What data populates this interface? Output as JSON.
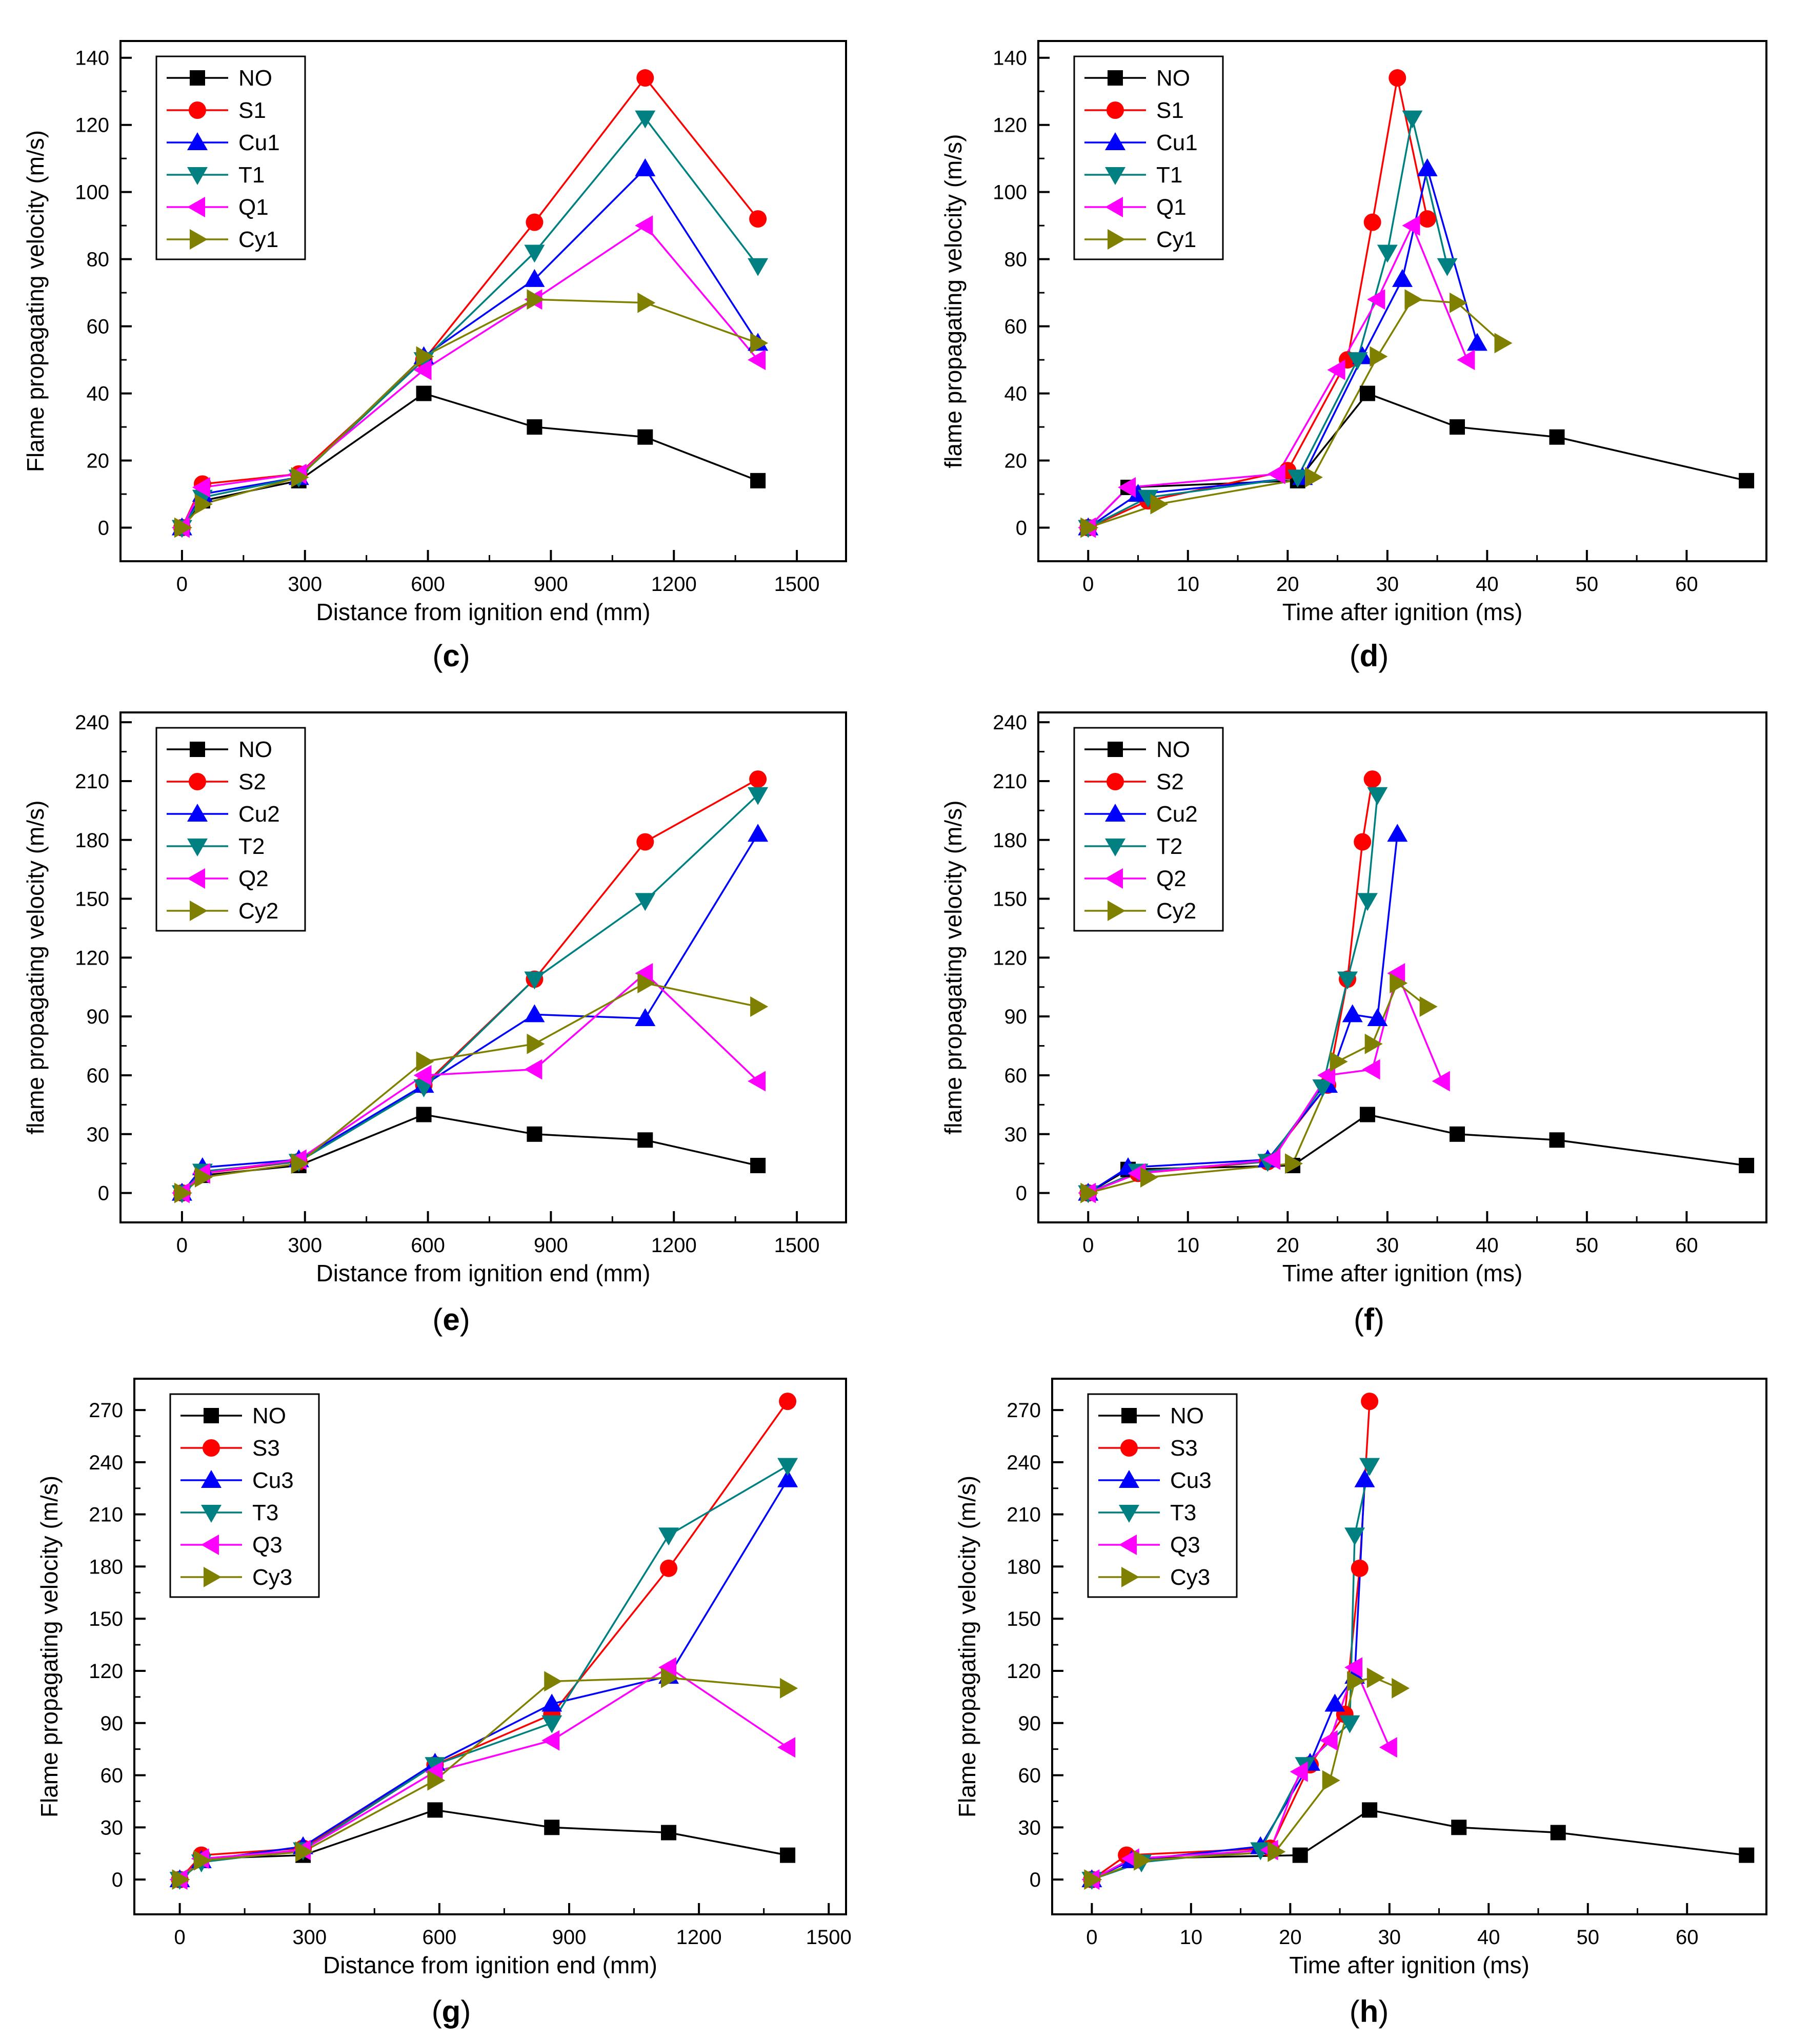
{
  "chart_data": [
    {
      "panel": "c",
      "type": "line",
      "xlabel": "Distance from ignition end (mm)",
      "ylabel": "Flame propagating velocity (m/s)",
      "xlim": [
        -150,
        1620
      ],
      "ylim": [
        -10,
        145
      ],
      "xticks": [
        0,
        300,
        600,
        900,
        1200,
        1500
      ],
      "yticks": [
        0,
        20,
        40,
        60,
        80,
        100,
        120,
        140
      ],
      "grid": false,
      "legend": "top-left",
      "series": [
        {
          "name": "NO",
          "color": "#000000",
          "marker": "square",
          "x": [
            0,
            50,
            285,
            590,
            860,
            1130,
            1405
          ],
          "y": [
            0,
            8,
            14,
            40,
            30,
            27,
            14
          ]
        },
        {
          "name": "S1",
          "color": "#ff0000",
          "marker": "circle",
          "x": [
            0,
            50,
            285,
            590,
            860,
            1130,
            1405
          ],
          "y": [
            0,
            13,
            16,
            50,
            91,
            134,
            92
          ]
        },
        {
          "name": "Cu1",
          "color": "#0000ff",
          "marker": "triangle-up",
          "x": [
            0,
            50,
            285,
            590,
            860,
            1130,
            1405
          ],
          "y": [
            0,
            10,
            15,
            51,
            74,
            107,
            55
          ]
        },
        {
          "name": "T1",
          "color": "#008080",
          "marker": "triangle-down",
          "x": [
            0,
            50,
            285,
            590,
            860,
            1130,
            1405
          ],
          "y": [
            0,
            9,
            15,
            50,
            82,
            122,
            78
          ]
        },
        {
          "name": "Q1",
          "color": "#ff00ff",
          "marker": "triangle-left",
          "x": [
            0,
            50,
            285,
            590,
            860,
            1130,
            1405
          ],
          "y": [
            0,
            12,
            16,
            47,
            68,
            90,
            50
          ]
        },
        {
          "name": "Cy1",
          "color": "#808000",
          "marker": "triangle-right",
          "x": [
            0,
            50,
            285,
            590,
            860,
            1130,
            1405
          ],
          "y": [
            0,
            7,
            15,
            51,
            68,
            67,
            55
          ]
        }
      ]
    },
    {
      "panel": "d",
      "type": "line",
      "xlabel": "Time after ignition (ms)",
      "ylabel": "flame propagating velocity (m/s)",
      "xlim": [
        -5,
        68
      ],
      "ylim": [
        -10,
        145
      ],
      "xticks": [
        0,
        10,
        20,
        30,
        40,
        50,
        60
      ],
      "yticks": [
        0,
        20,
        40,
        60,
        80,
        100,
        120,
        140
      ],
      "grid": false,
      "legend": "top-left",
      "series": [
        {
          "name": "NO",
          "color": "#000000",
          "marker": "square",
          "x": [
            0,
            4,
            21,
            28,
            37,
            47,
            66
          ],
          "y": [
            0,
            12,
            14,
            40,
            30,
            27,
            14
          ]
        },
        {
          "name": "S1",
          "color": "#ff0000",
          "marker": "circle",
          "x": [
            0,
            6,
            20,
            26,
            28.5,
            31,
            34
          ],
          "y": [
            0,
            8,
            17,
            50,
            91,
            134,
            92
          ]
        },
        {
          "name": "Cu1",
          "color": "#0000ff",
          "marker": "triangle-up",
          "x": [
            0,
            5,
            21.5,
            27.5,
            31.5,
            34,
            39
          ],
          "y": [
            0,
            10,
            15,
            51,
            74,
            107,
            55
          ]
        },
        {
          "name": "T1",
          "color": "#008080",
          "marker": "triangle-down",
          "x": [
            0,
            6,
            21,
            27,
            30,
            32.5,
            36
          ],
          "y": [
            0,
            9,
            15,
            50,
            82,
            122,
            78
          ]
        },
        {
          "name": "Q1",
          "color": "#ff00ff",
          "marker": "triangle-left",
          "x": [
            0,
            4,
            19,
            25,
            29,
            32.5,
            38
          ],
          "y": [
            0,
            12,
            16,
            47,
            68,
            90,
            50
          ]
        },
        {
          "name": "Cy1",
          "color": "#808000",
          "marker": "triangle-right",
          "x": [
            0,
            7,
            22.5,
            29,
            32.5,
            37,
            41.5
          ],
          "y": [
            0,
            7,
            15,
            51,
            68,
            67,
            55
          ]
        }
      ]
    },
    {
      "panel": "e",
      "type": "line",
      "xlabel": "Distance from ignition end (mm)",
      "ylabel": "flame propagating velocity (m/s)",
      "xlim": [
        -150,
        1620
      ],
      "ylim": [
        -15,
        245
      ],
      "xticks": [
        0,
        300,
        600,
        900,
        1200,
        1500
      ],
      "yticks": [
        0,
        30,
        60,
        90,
        120,
        150,
        180,
        210,
        240
      ],
      "grid": false,
      "legend": "top-left",
      "series": [
        {
          "name": "NO",
          "color": "#000000",
          "marker": "square",
          "x": [
            0,
            50,
            285,
            590,
            860,
            1130,
            1405
          ],
          "y": [
            0,
            9,
            14,
            40,
            30,
            27,
            14
          ]
        },
        {
          "name": "S2",
          "color": "#ff0000",
          "marker": "circle",
          "x": [
            0,
            50,
            285,
            590,
            860,
            1130,
            1405
          ],
          "y": [
            0,
            10,
            16,
            55,
            109,
            179,
            211
          ]
        },
        {
          "name": "Cu2",
          "color": "#0000ff",
          "marker": "triangle-up",
          "x": [
            0,
            50,
            285,
            590,
            860,
            1130,
            1405
          ],
          "y": [
            0,
            13,
            17,
            55,
            91,
            89,
            183
          ]
        },
        {
          "name": "T2",
          "color": "#008080",
          "marker": "triangle-down",
          "x": [
            0,
            50,
            285,
            590,
            860,
            1130,
            1405
          ],
          "y": [
            0,
            11,
            16,
            54,
            109,
            149,
            203
          ]
        },
        {
          "name": "Q2",
          "color": "#ff00ff",
          "marker": "triangle-left",
          "x": [
            0,
            50,
            285,
            590,
            860,
            1130,
            1405
          ],
          "y": [
            0,
            10,
            17,
            60,
            63,
            112,
            57
          ]
        },
        {
          "name": "Cy2",
          "color": "#808000",
          "marker": "triangle-right",
          "x": [
            0,
            50,
            285,
            590,
            860,
            1130,
            1405
          ],
          "y": [
            0,
            8,
            15,
            67,
            76,
            107,
            95
          ]
        }
      ]
    },
    {
      "panel": "f",
      "type": "line",
      "xlabel": "Time after ignition (ms)",
      "ylabel": "flame propagating velocity (m/s)",
      "xlim": [
        -5,
        68
      ],
      "ylim": [
        -15,
        245
      ],
      "xticks": [
        0,
        10,
        20,
        30,
        40,
        50,
        60
      ],
      "yticks": [
        0,
        30,
        60,
        90,
        120,
        150,
        180,
        210,
        240
      ],
      "grid": false,
      "legend": "top-left",
      "series": [
        {
          "name": "NO",
          "color": "#000000",
          "marker": "square",
          "x": [
            0,
            4,
            20.5,
            28,
            37,
            47,
            66
          ],
          "y": [
            0,
            12,
            14,
            40,
            30,
            27,
            14
          ]
        },
        {
          "name": "S2",
          "color": "#ff0000",
          "marker": "circle",
          "x": [
            0,
            5,
            18,
            24,
            26,
            27.5,
            28.5
          ],
          "y": [
            0,
            10,
            16,
            55,
            109,
            179,
            211
          ]
        },
        {
          "name": "Cu2",
          "color": "#0000ff",
          "marker": "triangle-up",
          "x": [
            0,
            4,
            18,
            24,
            26.5,
            29,
            31
          ],
          "y": [
            0,
            13,
            17,
            55,
            91,
            89,
            183
          ]
        },
        {
          "name": "T2",
          "color": "#008080",
          "marker": "triangle-down",
          "x": [
            0,
            5,
            18,
            23.5,
            26,
            28,
            29
          ],
          "y": [
            0,
            11,
            16,
            54,
            109,
            149,
            203
          ]
        },
        {
          "name": "Q2",
          "color": "#ff00ff",
          "marker": "triangle-left",
          "x": [
            0,
            5,
            18.5,
            24,
            28.5,
            31,
            35.5
          ],
          "y": [
            0,
            10,
            17,
            60,
            63,
            112,
            57
          ]
        },
        {
          "name": "Cy2",
          "color": "#808000",
          "marker": "triangle-right",
          "x": [
            0,
            6,
            20.5,
            25,
            28.5,
            31,
            34
          ],
          "y": [
            0,
            8,
            15,
            67,
            76,
            107,
            95
          ]
        }
      ]
    },
    {
      "panel": "g",
      "type": "line",
      "xlabel": "Distance from ignition end (mm)",
      "ylabel": "Flame propagating velocity (m/s)",
      "xlim": [
        -105,
        1540
      ],
      "ylim": [
        -20,
        288
      ],
      "xticks": [
        0,
        300,
        600,
        900,
        1200,
        1500
      ],
      "yticks": [
        0,
        30,
        60,
        90,
        120,
        150,
        180,
        210,
        240,
        270
      ],
      "grid": false,
      "legend": "top-left",
      "series": [
        {
          "name": "NO",
          "color": "#000000",
          "marker": "square",
          "x": [
            0,
            50,
            285,
            590,
            860,
            1130,
            1405
          ],
          "y": [
            0,
            12,
            14,
            40,
            30,
            27,
            14
          ]
        },
        {
          "name": "S3",
          "color": "#ff0000",
          "marker": "circle",
          "x": [
            0,
            50,
            285,
            590,
            860,
            1130,
            1405
          ],
          "y": [
            0,
            14,
            18,
            66,
            95,
            179,
            275
          ]
        },
        {
          "name": "Cu3",
          "color": "#0000ff",
          "marker": "triangle-up",
          "x": [
            0,
            50,
            285,
            590,
            860,
            1130,
            1405
          ],
          "y": [
            0,
            11,
            19,
            67,
            101,
            117,
            230
          ]
        },
        {
          "name": "T3",
          "color": "#008080",
          "marker": "triangle-down",
          "x": [
            0,
            50,
            285,
            590,
            860,
            1130,
            1405
          ],
          "y": [
            0,
            10,
            17,
            66,
            90,
            198,
            238
          ]
        },
        {
          "name": "Q3",
          "color": "#ff00ff",
          "marker": "triangle-left",
          "x": [
            0,
            50,
            285,
            590,
            860,
            1130,
            1405
          ],
          "y": [
            0,
            12,
            17,
            62,
            80,
            122,
            76
          ]
        },
        {
          "name": "Cy3",
          "color": "#808000",
          "marker": "triangle-right",
          "x": [
            0,
            50,
            285,
            590,
            860,
            1130,
            1405
          ],
          "y": [
            0,
            11,
            16,
            57,
            114,
            116,
            110
          ]
        }
      ]
    },
    {
      "panel": "h",
      "type": "line",
      "xlabel": "Time after ignition (ms)",
      "ylabel": "Flame propagating velocity (m/s)",
      "xlim": [
        -4,
        68
      ],
      "ylim": [
        -20,
        288
      ],
      "xticks": [
        0,
        10,
        20,
        30,
        40,
        50,
        60
      ],
      "yticks": [
        0,
        30,
        60,
        90,
        120,
        150,
        180,
        210,
        240,
        270
      ],
      "grid": false,
      "legend": "top-left",
      "series": [
        {
          "name": "NO",
          "color": "#000000",
          "marker": "square",
          "x": [
            0,
            4,
            21,
            28,
            37,
            47,
            66
          ],
          "y": [
            0,
            12,
            14,
            40,
            30,
            27,
            14
          ]
        },
        {
          "name": "S3",
          "color": "#ff0000",
          "marker": "circle",
          "x": [
            0,
            3.5,
            18,
            22,
            25.5,
            27,
            28
          ],
          "y": [
            0,
            14,
            18,
            66,
            95,
            179,
            275
          ]
        },
        {
          "name": "Cu3",
          "color": "#0000ff",
          "marker": "triangle-up",
          "x": [
            0,
            4,
            17,
            22,
            24.5,
            26.5,
            27.5
          ],
          "y": [
            0,
            11,
            19,
            67,
            101,
            117,
            230
          ]
        },
        {
          "name": "T3",
          "color": "#008080",
          "marker": "triangle-down",
          "x": [
            0,
            5,
            17,
            21.5,
            26,
            26.5,
            28
          ],
          "y": [
            0,
            10,
            17,
            66,
            90,
            198,
            238
          ]
        },
        {
          "name": "Q3",
          "color": "#ff00ff",
          "marker": "triangle-left",
          "x": [
            0,
            4,
            18,
            21,
            24,
            26.5,
            30
          ],
          "y": [
            0,
            12,
            17,
            62,
            80,
            122,
            76
          ]
        },
        {
          "name": "Cy3",
          "color": "#808000",
          "marker": "triangle-right",
          "x": [
            0,
            5,
            18.5,
            24,
            26.5,
            28.5,
            31
          ],
          "y": [
            0,
            11,
            16,
            57,
            114,
            116,
            110
          ]
        }
      ]
    }
  ],
  "captions": [
    "(c)",
    "(d)",
    "(e)",
    "(f)",
    "(g)",
    "(h)"
  ]
}
